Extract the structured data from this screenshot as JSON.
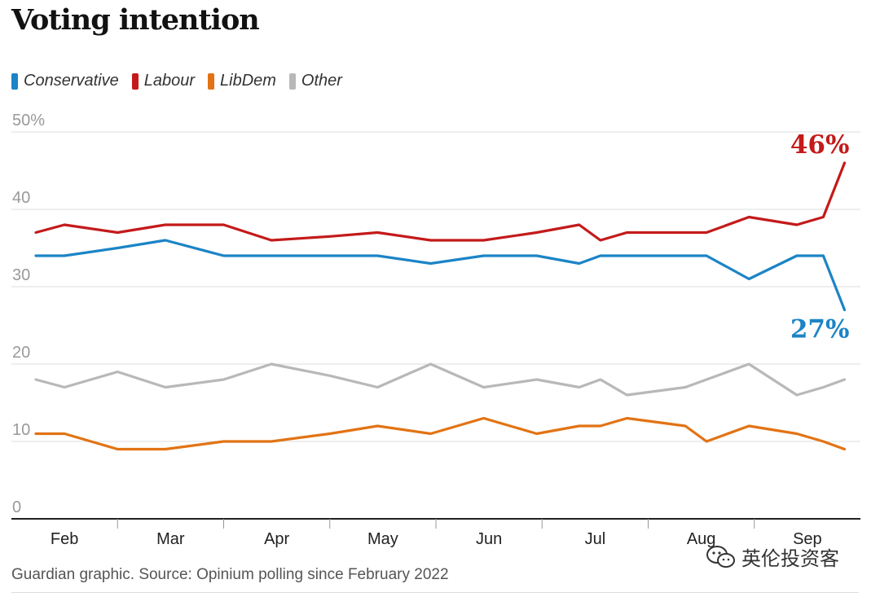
{
  "title": "Voting intention",
  "footer": "Guardian graphic. Source: Opinium polling since February 2022",
  "watermark": {
    "label": "英伦投资客",
    "icon": "wechat-icon"
  },
  "chart_data": {
    "type": "line",
    "title": "Voting intention",
    "xlabel": "",
    "ylabel": "",
    "ylim": [
      0,
      50
    ],
    "yticks": [
      {
        "value": 50,
        "label": "50%"
      },
      {
        "value": 40,
        "label": "40"
      },
      {
        "value": 30,
        "label": "30"
      },
      {
        "value": 20,
        "label": "20"
      },
      {
        "value": 10,
        "label": "10"
      },
      {
        "value": 0,
        "label": "0"
      }
    ],
    "grid": true,
    "legend_position": "top-left",
    "x_ticks": [
      {
        "label": "Feb",
        "t": 1.0
      },
      {
        "label": "Mar",
        "t": 2.0
      },
      {
        "label": "Apr",
        "t": 3.0
      },
      {
        "label": "May",
        "t": 4.0
      },
      {
        "label": "Jun",
        "t": 5.0
      },
      {
        "label": "Jul",
        "t": 6.0
      },
      {
        "label": "Aug",
        "t": 7.0
      },
      {
        "label": "Sep",
        "t": 8.0
      }
    ],
    "x_range": [
      0.5,
      8.5
    ],
    "x": [
      0.73,
      1.0,
      1.5,
      1.95,
      2.5,
      2.95,
      3.5,
      3.95,
      4.45,
      4.95,
      5.45,
      5.85,
      6.05,
      6.3,
      6.85,
      7.05,
      7.45,
      7.9,
      8.15,
      8.35
    ],
    "series": [
      {
        "name": "Conservative",
        "color": "#1c84c6",
        "values": [
          34,
          34,
          35,
          36,
          34,
          34,
          34,
          34,
          33,
          34,
          34,
          33,
          34,
          34,
          34,
          34,
          31,
          34,
          34,
          27
        ],
        "end_label": "27%"
      },
      {
        "name": "Labour",
        "color": "#c41a1a",
        "values": [
          37,
          38,
          37,
          38,
          38,
          36,
          36.5,
          37,
          36,
          36,
          37,
          38,
          36,
          37,
          37,
          37,
          39,
          38,
          39,
          46
        ],
        "end_label": "46%"
      },
      {
        "name": "LibDem",
        "color": "#e27314",
        "values": [
          11,
          11,
          9,
          9,
          10,
          10,
          11,
          12,
          11,
          13,
          11,
          12,
          12,
          13,
          12,
          10,
          12,
          11,
          10,
          9
        ],
        "end_label": ""
      },
      {
        "name": "Other",
        "color": "#b8b8b8",
        "values": [
          18,
          17,
          19,
          17,
          18,
          20,
          18.5,
          17,
          20,
          17,
          18,
          17,
          18,
          16,
          17,
          18,
          20,
          16,
          17,
          18
        ],
        "end_label": ""
      }
    ]
  }
}
